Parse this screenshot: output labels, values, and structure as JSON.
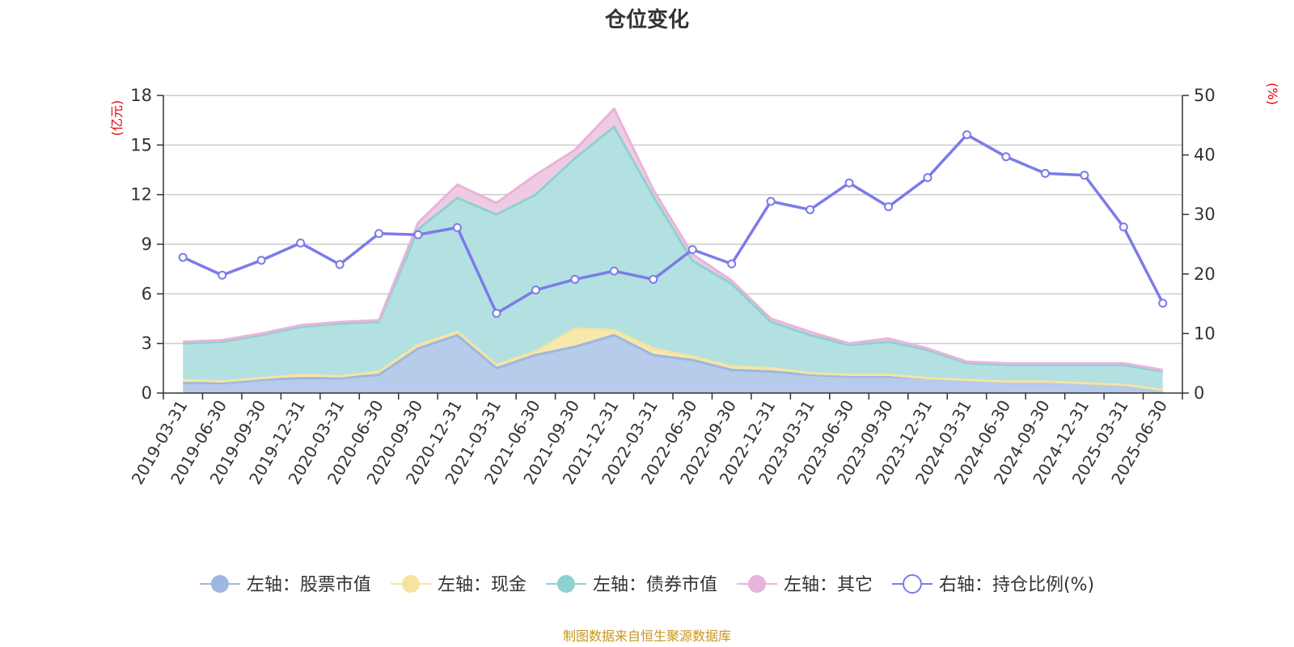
{
  "chart_data": {
    "type": "area",
    "title": "仓位变化",
    "left_axis_unit": "(亿元)",
    "right_axis_unit": "(%)",
    "left_ylim": [
      0,
      18
    ],
    "left_ticks": [
      "0",
      "3",
      "6",
      "9",
      "12",
      "15",
      "18"
    ],
    "right_ylim": [
      0,
      50
    ],
    "right_ticks": [
      "0",
      "10",
      "20",
      "30",
      "40",
      "50"
    ],
    "grid": true,
    "legend_position": "bottom",
    "categories": [
      "2019-03-31",
      "2019-06-30",
      "2019-09-30",
      "2019-12-31",
      "2020-03-31",
      "2020-06-30",
      "2020-09-30",
      "2020-12-31",
      "2021-03-31",
      "2021-06-30",
      "2021-09-30",
      "2021-12-31",
      "2022-03-31",
      "2022-06-30",
      "2022-09-30",
      "2022-12-31",
      "2023-03-31",
      "2023-06-30",
      "2023-09-30",
      "2023-12-31",
      "2024-03-31",
      "2024-06-30",
      "2024-09-30",
      "2024-12-31",
      "2025-03-31",
      "2025-06-30"
    ],
    "series": [
      {
        "name": "左轴：股票市值",
        "axis": "left",
        "stack": true,
        "color": "#9db7e0",
        "fill": "#b7cbea",
        "values": [
          0.6,
          0.6,
          0.8,
          0.9,
          0.9,
          1.1,
          2.7,
          3.5,
          1.5,
          2.3,
          2.8,
          3.5,
          2.3,
          2.0,
          1.4,
          1.3,
          1.1,
          1.0,
          1.0,
          0.9,
          0.8,
          0.7,
          0.7,
          0.6,
          0.5,
          0.2
        ]
      },
      {
        "name": "左轴：现金",
        "axis": "left",
        "stack": true,
        "color": "#f5e4a0",
        "fill": "#f7e8ad",
        "values": [
          0.2,
          0.1,
          0.1,
          0.2,
          0.1,
          0.2,
          0.2,
          0.2,
          0.2,
          0.2,
          1.1,
          0.3,
          0.4,
          0.2,
          0.2,
          0.2,
          0.1,
          0.1,
          0.1,
          0.0,
          0.0,
          0.0,
          0.0,
          0.0,
          0.0,
          0.0
        ]
      },
      {
        "name": "左轴：债券市值",
        "axis": "left",
        "stack": true,
        "color": "#8ed1d1",
        "fill": "#b3e1e1",
        "values": [
          2.2,
          2.4,
          2.6,
          2.9,
          3.2,
          3.0,
          7.0,
          8.1,
          9.1,
          9.5,
          10.3,
          12.3,
          9.2,
          5.8,
          5.0,
          2.8,
          2.3,
          1.8,
          2.0,
          1.7,
          1.0,
          1.0,
          1.0,
          1.1,
          1.2,
          1.1
        ]
      },
      {
        "name": "左轴：其它",
        "axis": "left",
        "stack": true,
        "color": "#e8b4da",
        "fill": "#efcbe3",
        "values": [
          0.1,
          0.1,
          0.1,
          0.1,
          0.1,
          0.1,
          0.4,
          0.8,
          0.7,
          1.2,
          0.5,
          1.1,
          0.4,
          0.4,
          0.2,
          0.2,
          0.2,
          0.1,
          0.2,
          0.1,
          0.1,
          0.1,
          0.1,
          0.1,
          0.1,
          0.1
        ]
      },
      {
        "name": "右轴：持仓比例(%)",
        "axis": "right",
        "stack": false,
        "color": "#7b7bea",
        "values": [
          22.8,
          19.8,
          22.3,
          25.2,
          21.6,
          26.8,
          26.6,
          27.8,
          13.4,
          17.3,
          19.1,
          20.5,
          19.1,
          24.1,
          21.7,
          32.2,
          30.8,
          35.3,
          31.3,
          36.2,
          43.4,
          39.7,
          36.9,
          36.6,
          27.9,
          15.1
        ]
      }
    ]
  },
  "footer": {
    "source": "制图数据来自恒生聚源数据库"
  }
}
